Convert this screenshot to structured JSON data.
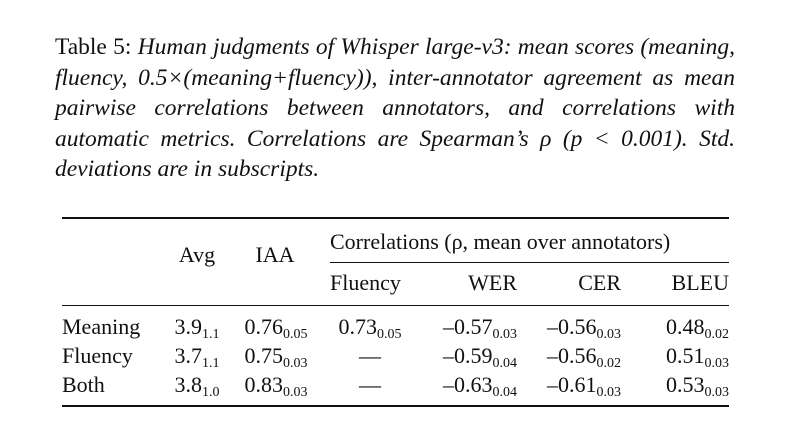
{
  "caption": {
    "label": "Table 5:",
    "text": "Human judgments of Whisper large-v3: mean scores (meaning, fluency, 0.5×(meaning+fluency)), inter-annotator agreement as mean pairwise correlations between annotators, and correlations with automatic metrics. Correlations are Spearman’s ρ (p < 0.001). Std. deviations are in subscripts."
  },
  "table": {
    "headers": {
      "avg": "Avg",
      "iaa": "IAA",
      "group": "Correlations (ρ, mean over annotators)",
      "fluency": "Fluency",
      "wer": "WER",
      "cer": "CER",
      "bleu": "BLEU"
    },
    "rows": [
      {
        "label": "Meaning",
        "avg": {
          "v": "3.9",
          "s": "1.1"
        },
        "iaa": {
          "v": "0.76",
          "s": "0.05"
        },
        "fluency": {
          "v": "0.73",
          "s": "0.05"
        },
        "wer": {
          "v": "–0.57",
          "s": "0.03"
        },
        "cer": {
          "v": "–0.56",
          "s": "0.03"
        },
        "bleu": {
          "v": "0.48",
          "s": "0.02"
        }
      },
      {
        "label": "Fluency",
        "avg": {
          "v": "3.7",
          "s": "1.1"
        },
        "iaa": {
          "v": "0.75",
          "s": "0.03"
        },
        "fluency": {
          "v": "—",
          "s": ""
        },
        "wer": {
          "v": "–0.59",
          "s": "0.04"
        },
        "cer": {
          "v": "–0.56",
          "s": "0.02"
        },
        "bleu": {
          "v": "0.51",
          "s": "0.03"
        }
      },
      {
        "label": "Both",
        "avg": {
          "v": "3.8",
          "s": "1.0"
        },
        "iaa": {
          "v": "0.83",
          "s": "0.03"
        },
        "fluency": {
          "v": "—",
          "s": ""
        },
        "wer": {
          "v": "–0.63",
          "s": "0.04"
        },
        "cer": {
          "v": "–0.61",
          "s": "0.03"
        },
        "bleu": {
          "v": "0.53",
          "s": "0.03"
        }
      }
    ]
  }
}
